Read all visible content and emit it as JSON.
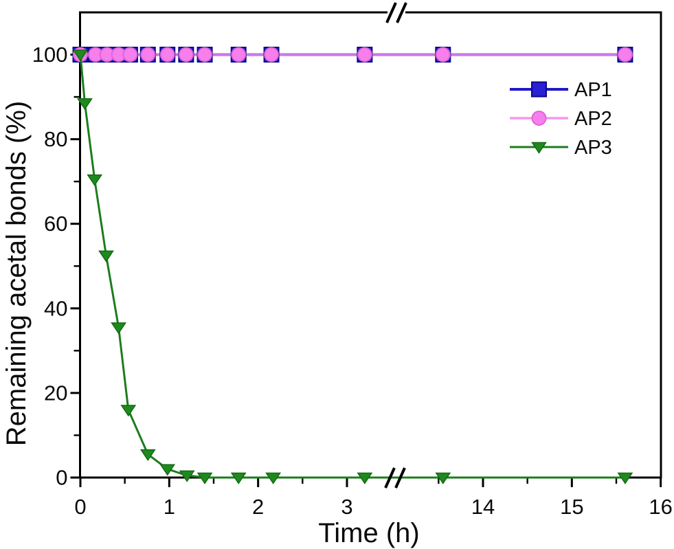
{
  "figure": {
    "background": "#ffffff",
    "frame_color": "#000000"
  },
  "chart_data": {
    "type": "line",
    "title": "",
    "xlabel": "Time (h)",
    "ylabel": "Remaining acetal bonds (%)",
    "xlim_left_segment": [
      0,
      3.44
    ],
    "xlim_right_segment": [
      13.13,
      16
    ],
    "ylim": [
      0,
      110
    ],
    "grid": false,
    "axis_break": {
      "axis": "x",
      "symbol": "//",
      "between": [
        3.44,
        13.13
      ]
    },
    "xticks_major_left": [
      0,
      1,
      2,
      3
    ],
    "xticks_major_right": [
      14,
      15,
      16
    ],
    "xticks_minor_left": [
      0.5,
      1.5,
      2.5
    ],
    "xticks_minor_right": [
      13.5,
      14.5,
      15.5
    ],
    "yticks_major": [
      0,
      20,
      40,
      60,
      80,
      100
    ],
    "yticks_minor": [
      10,
      30,
      50,
      70,
      90
    ],
    "legend": {
      "position": "upper-right",
      "labels": [
        "AP1",
        "AP2",
        "AP3"
      ]
    },
    "series": [
      {
        "name": "AP1",
        "marker": "square",
        "line_color": "#2118C8",
        "marker_fill": "#2A20D4",
        "marker_edge": "#0B0887",
        "x": [
          0,
          0.17,
          0.3,
          0.43,
          0.56,
          0.76,
          0.98,
          1.19,
          1.4,
          1.78,
          2.15,
          3.2,
          13.55,
          15.6
        ],
        "y": [
          100,
          100,
          100,
          100,
          100,
          100,
          100,
          100,
          100,
          100,
          100,
          100,
          100,
          100
        ]
      },
      {
        "name": "AP2",
        "marker": "circle",
        "line_color": "#F895EF",
        "marker_fill": "#F77EED",
        "marker_edge": "#DE66D4",
        "x": [
          0,
          0.17,
          0.3,
          0.43,
          0.56,
          0.76,
          0.98,
          1.19,
          1.4,
          1.78,
          2.15,
          3.2,
          13.55,
          15.6
        ],
        "y": [
          100,
          100,
          100,
          100,
          100,
          100,
          100,
          100,
          100,
          100,
          100,
          100,
          100,
          100
        ]
      },
      {
        "name": "AP3",
        "marker": "triangle-down",
        "line_color": "#1C7C1C",
        "marker_fill": "#1E8A1E",
        "marker_edge": "#146914",
        "x": [
          0,
          0.05,
          0.16,
          0.29,
          0.43,
          0.54,
          0.76,
          0.98,
          1.2,
          1.4,
          1.78,
          2.17,
          3.2,
          13.55,
          15.6
        ],
        "y": [
          100,
          88.5,
          70.5,
          52.5,
          35.5,
          16,
          5.5,
          2,
          0.5,
          0,
          0,
          0,
          0,
          0,
          0
        ]
      }
    ]
  }
}
